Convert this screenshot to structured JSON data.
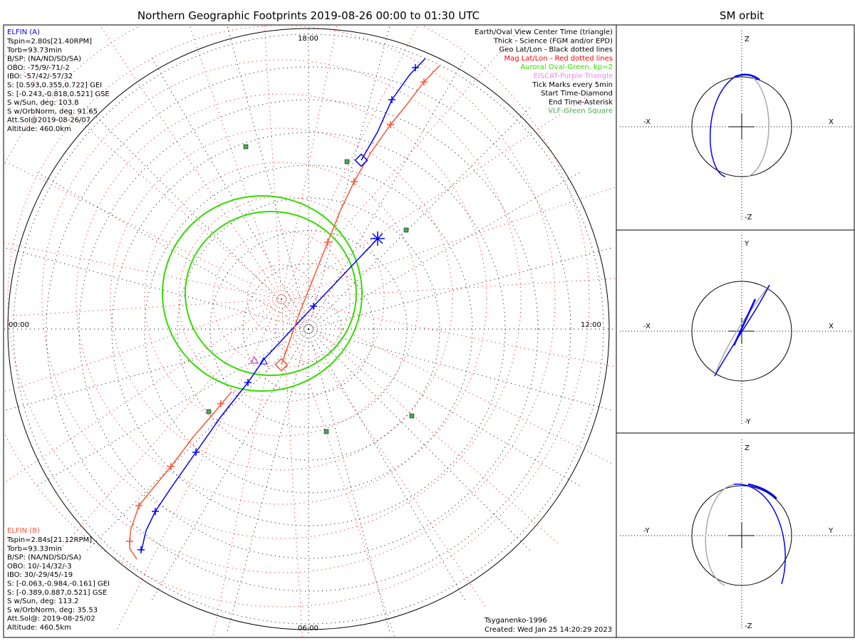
{
  "main": {
    "title": "Northern Geographic Footprints 2019-08-26 00:00 to 01:30 UTC",
    "time_labels": {
      "top": "18:00",
      "left": "00:00",
      "right": "12:00",
      "bottom": "06:00"
    },
    "elfin_a": {
      "name": "ELFIN (A)",
      "lines": [
        "Tspin=2.80s[21.40RPM]",
        "Torb=93.73min",
        "B/SP: (NA/ND/SD/SA)",
        "OBO: -75/9/-71/-2",
        "IBO: -57/42/-57/32",
        "S: [0.593,0.355,0.722] GEI",
        "S: [-0.243,-0.818,0.521] GSE",
        "S w/Sun, deg: 103.8",
        "S w/OrbNorm, deg: 91.65",
        "Att.Sol@2019-08-26/07",
        "Altitude: 460.0km"
      ]
    },
    "elfin_b": {
      "name": "ELFIN (B)",
      "lines": [
        "Tspin=2.84s[21.12RPM]",
        "Torb=93.33min",
        "B/SP: (NA/ND/SD/SA)",
        "OBO: 10/-14/32/-3",
        "IBO: 30/-29/45/-19",
        "S: [-0.063,-0.984,-0.161] GEI",
        "S: [-0.389,0.887,0.521] GSE",
        "S w/Sun, deg: 113.2",
        "S w/OrbNorm, deg: 35.53",
        "Att.Sol@: 2019-08-25/02",
        "Altitude: 460.5km"
      ]
    },
    "legend": [
      {
        "text": "Earth/Oval View Center Time (triangle)",
        "color": "#000000"
      },
      {
        "text": "Thick - Science (FGM and/or EPD)",
        "color": "#000000"
      },
      {
        "text": "Geo Lat/Lon - Black dotted lines",
        "color": "#000000"
      },
      {
        "text": "Mag Lat/Lon - Red dotted lines",
        "color": "#ff0000"
      },
      {
        "text": "Auroral Oval-Green, kp=2",
        "color": "#33dd00"
      },
      {
        "text": "EISCAT-Purple Triangle",
        "color": "#ee88ee"
      },
      {
        "text": "Tick Marks every 5min",
        "color": "#000000"
      },
      {
        "text": "Start Time-Diamond",
        "color": "#000000"
      },
      {
        "text": "End Time-Asterisk",
        "color": "#000000"
      },
      {
        "text": "VLF-Green Square",
        "color": "#44aa55"
      }
    ],
    "model": "Tsyganenko-1996",
    "created": "Created: Wed Jan 25 14:20:29 2023"
  },
  "sm_orbit": {
    "title": "SM orbit",
    "panels": [
      {
        "top": "Z",
        "bottom": "-Z",
        "left": "-X",
        "right": "X"
      },
      {
        "top": "Y",
        "bottom": "-Y",
        "left": "-X",
        "right": "X"
      },
      {
        "top": "Z",
        "bottom": "-Z",
        "left": "-Y",
        "right": "Y"
      }
    ]
  },
  "colors": {
    "elfin_a": "#0000ff",
    "elfin_b": "#ff5533",
    "oval": "#33dd00",
    "vlf": "#44aa55",
    "eiscat": "#cc66cc"
  }
}
